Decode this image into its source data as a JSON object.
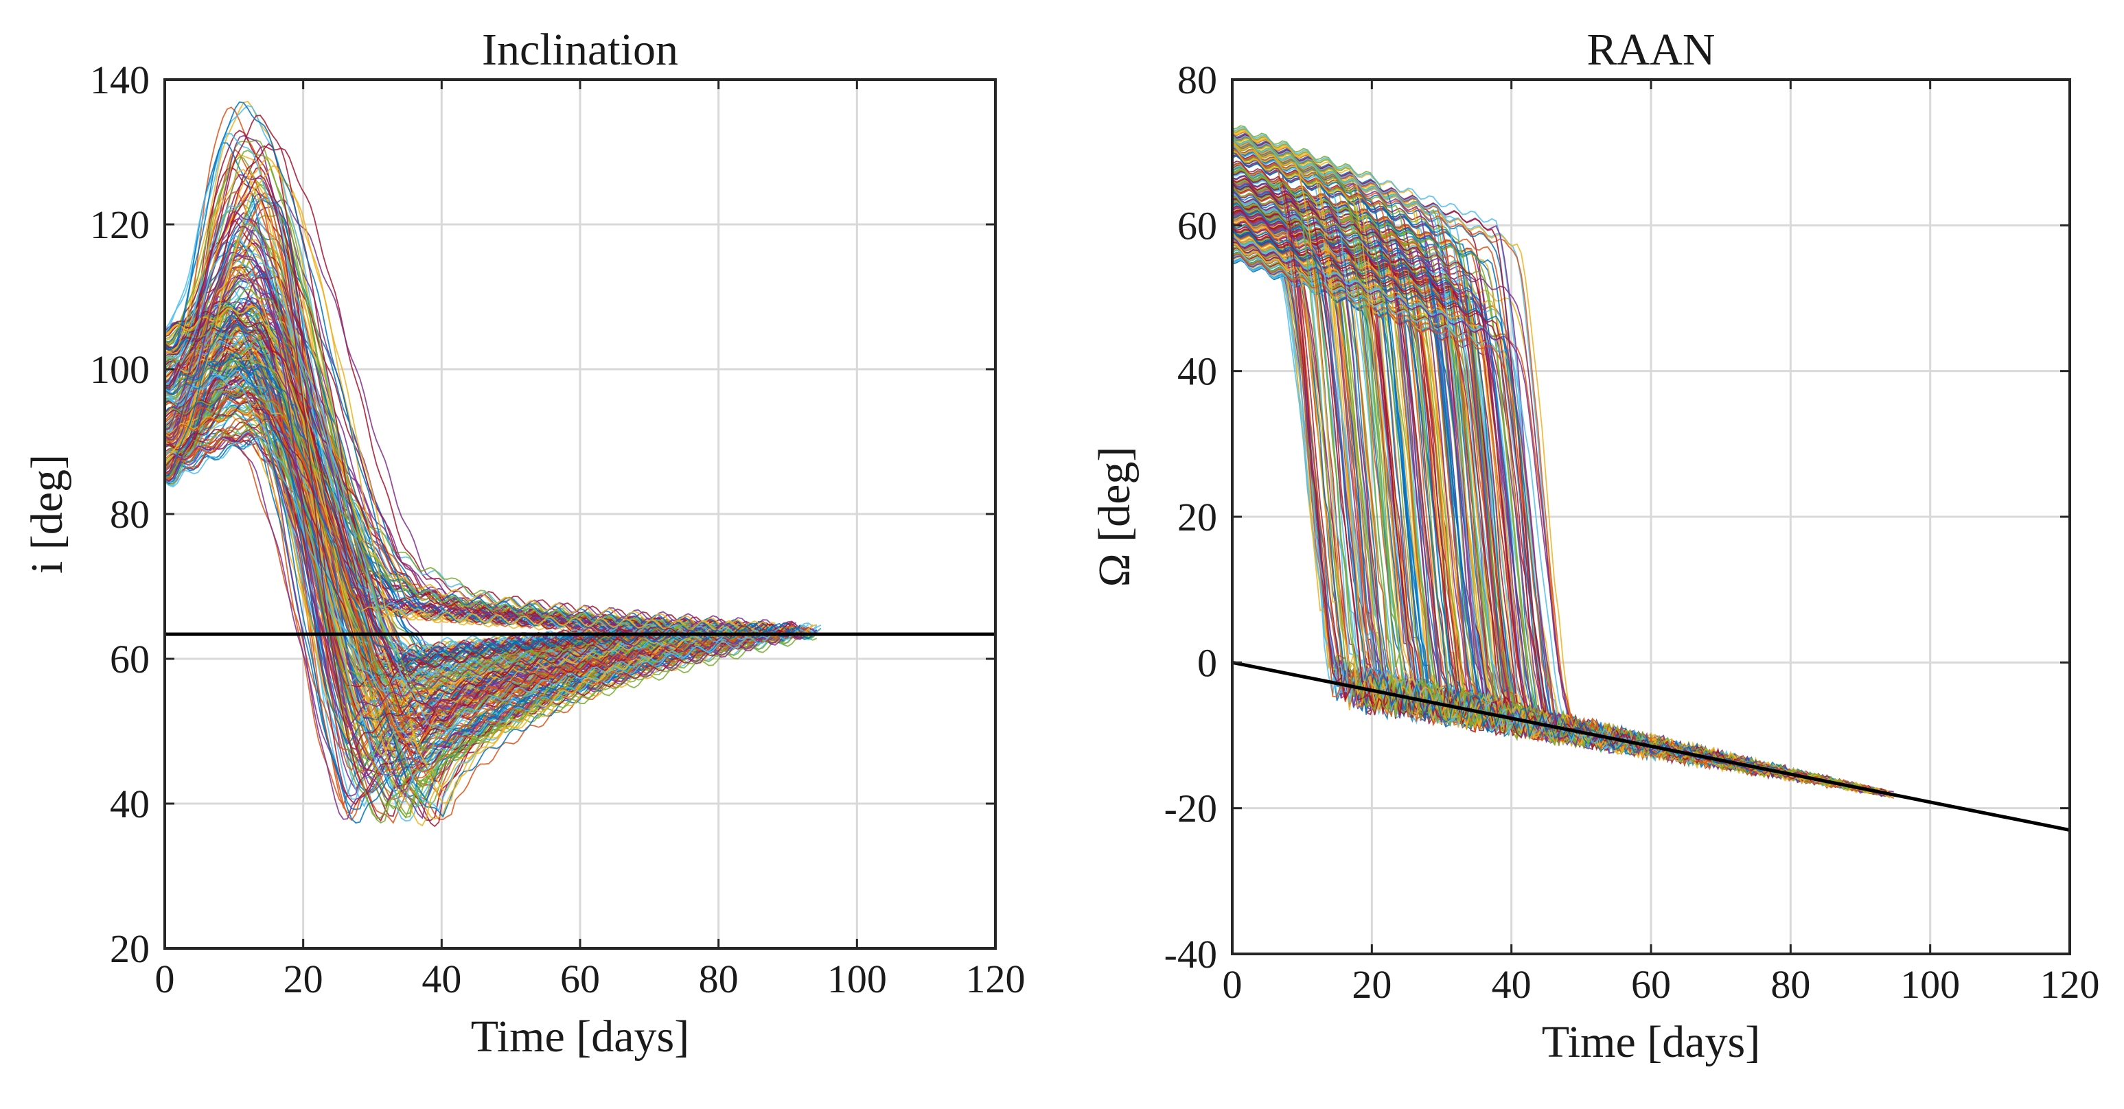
{
  "chart_data": [
    {
      "type": "line",
      "title": "Inclination",
      "xlabel": "Time [days]",
      "ylabel": "i [deg]",
      "xlim": [
        0,
        120
      ],
      "ylim": [
        20,
        140
      ],
      "xticks": [
        "0",
        "20",
        "40",
        "60",
        "80",
        "100",
        "120"
      ],
      "yticks": [
        "20",
        "40",
        "60",
        "80",
        "100",
        "120",
        "140"
      ],
      "grid": true,
      "ensemble": {
        "description_count": 260,
        "initial_range": [
          84,
          106
        ],
        "peak_day_range": [
          8,
          16
        ],
        "peak_range": [
          90,
          137
        ],
        "trough_day_range": [
          26,
          42
        ],
        "trough_range": [
          37,
          64
        ],
        "converge_value": 63.4,
        "end_day_range": [
          68,
          95
        ]
      },
      "reference_line": {
        "x": [
          0,
          120
        ],
        "y": [
          63.4,
          63.4
        ],
        "color": "#000000"
      }
    },
    {
      "type": "line",
      "title": "RAAN",
      "xlabel": "Time [days]",
      "ylabel": "Ω [deg]",
      "xlim": [
        0,
        120
      ],
      "ylim": [
        -40,
        80
      ],
      "xticks": [
        "0",
        "20",
        "40",
        "60",
        "80",
        "100",
        "120"
      ],
      "yticks": [
        "-40",
        "-20",
        "0",
        "20",
        "40",
        "60",
        "80"
      ],
      "grid": true,
      "ensemble": {
        "description_count": 260,
        "initial_range": [
          55,
          74
        ],
        "drop_day_range": [
          10,
          45
        ],
        "end_day_range": [
          60,
          95
        ]
      },
      "reference_line": {
        "x": [
          0,
          120
        ],
        "y": [
          0,
          -23
        ],
        "color": "#000000"
      }
    }
  ],
  "series_colors": [
    "#0072BD",
    "#D95319",
    "#EDB120",
    "#7E2F8E",
    "#77AC30",
    "#4DBEEE",
    "#A2142F"
  ]
}
